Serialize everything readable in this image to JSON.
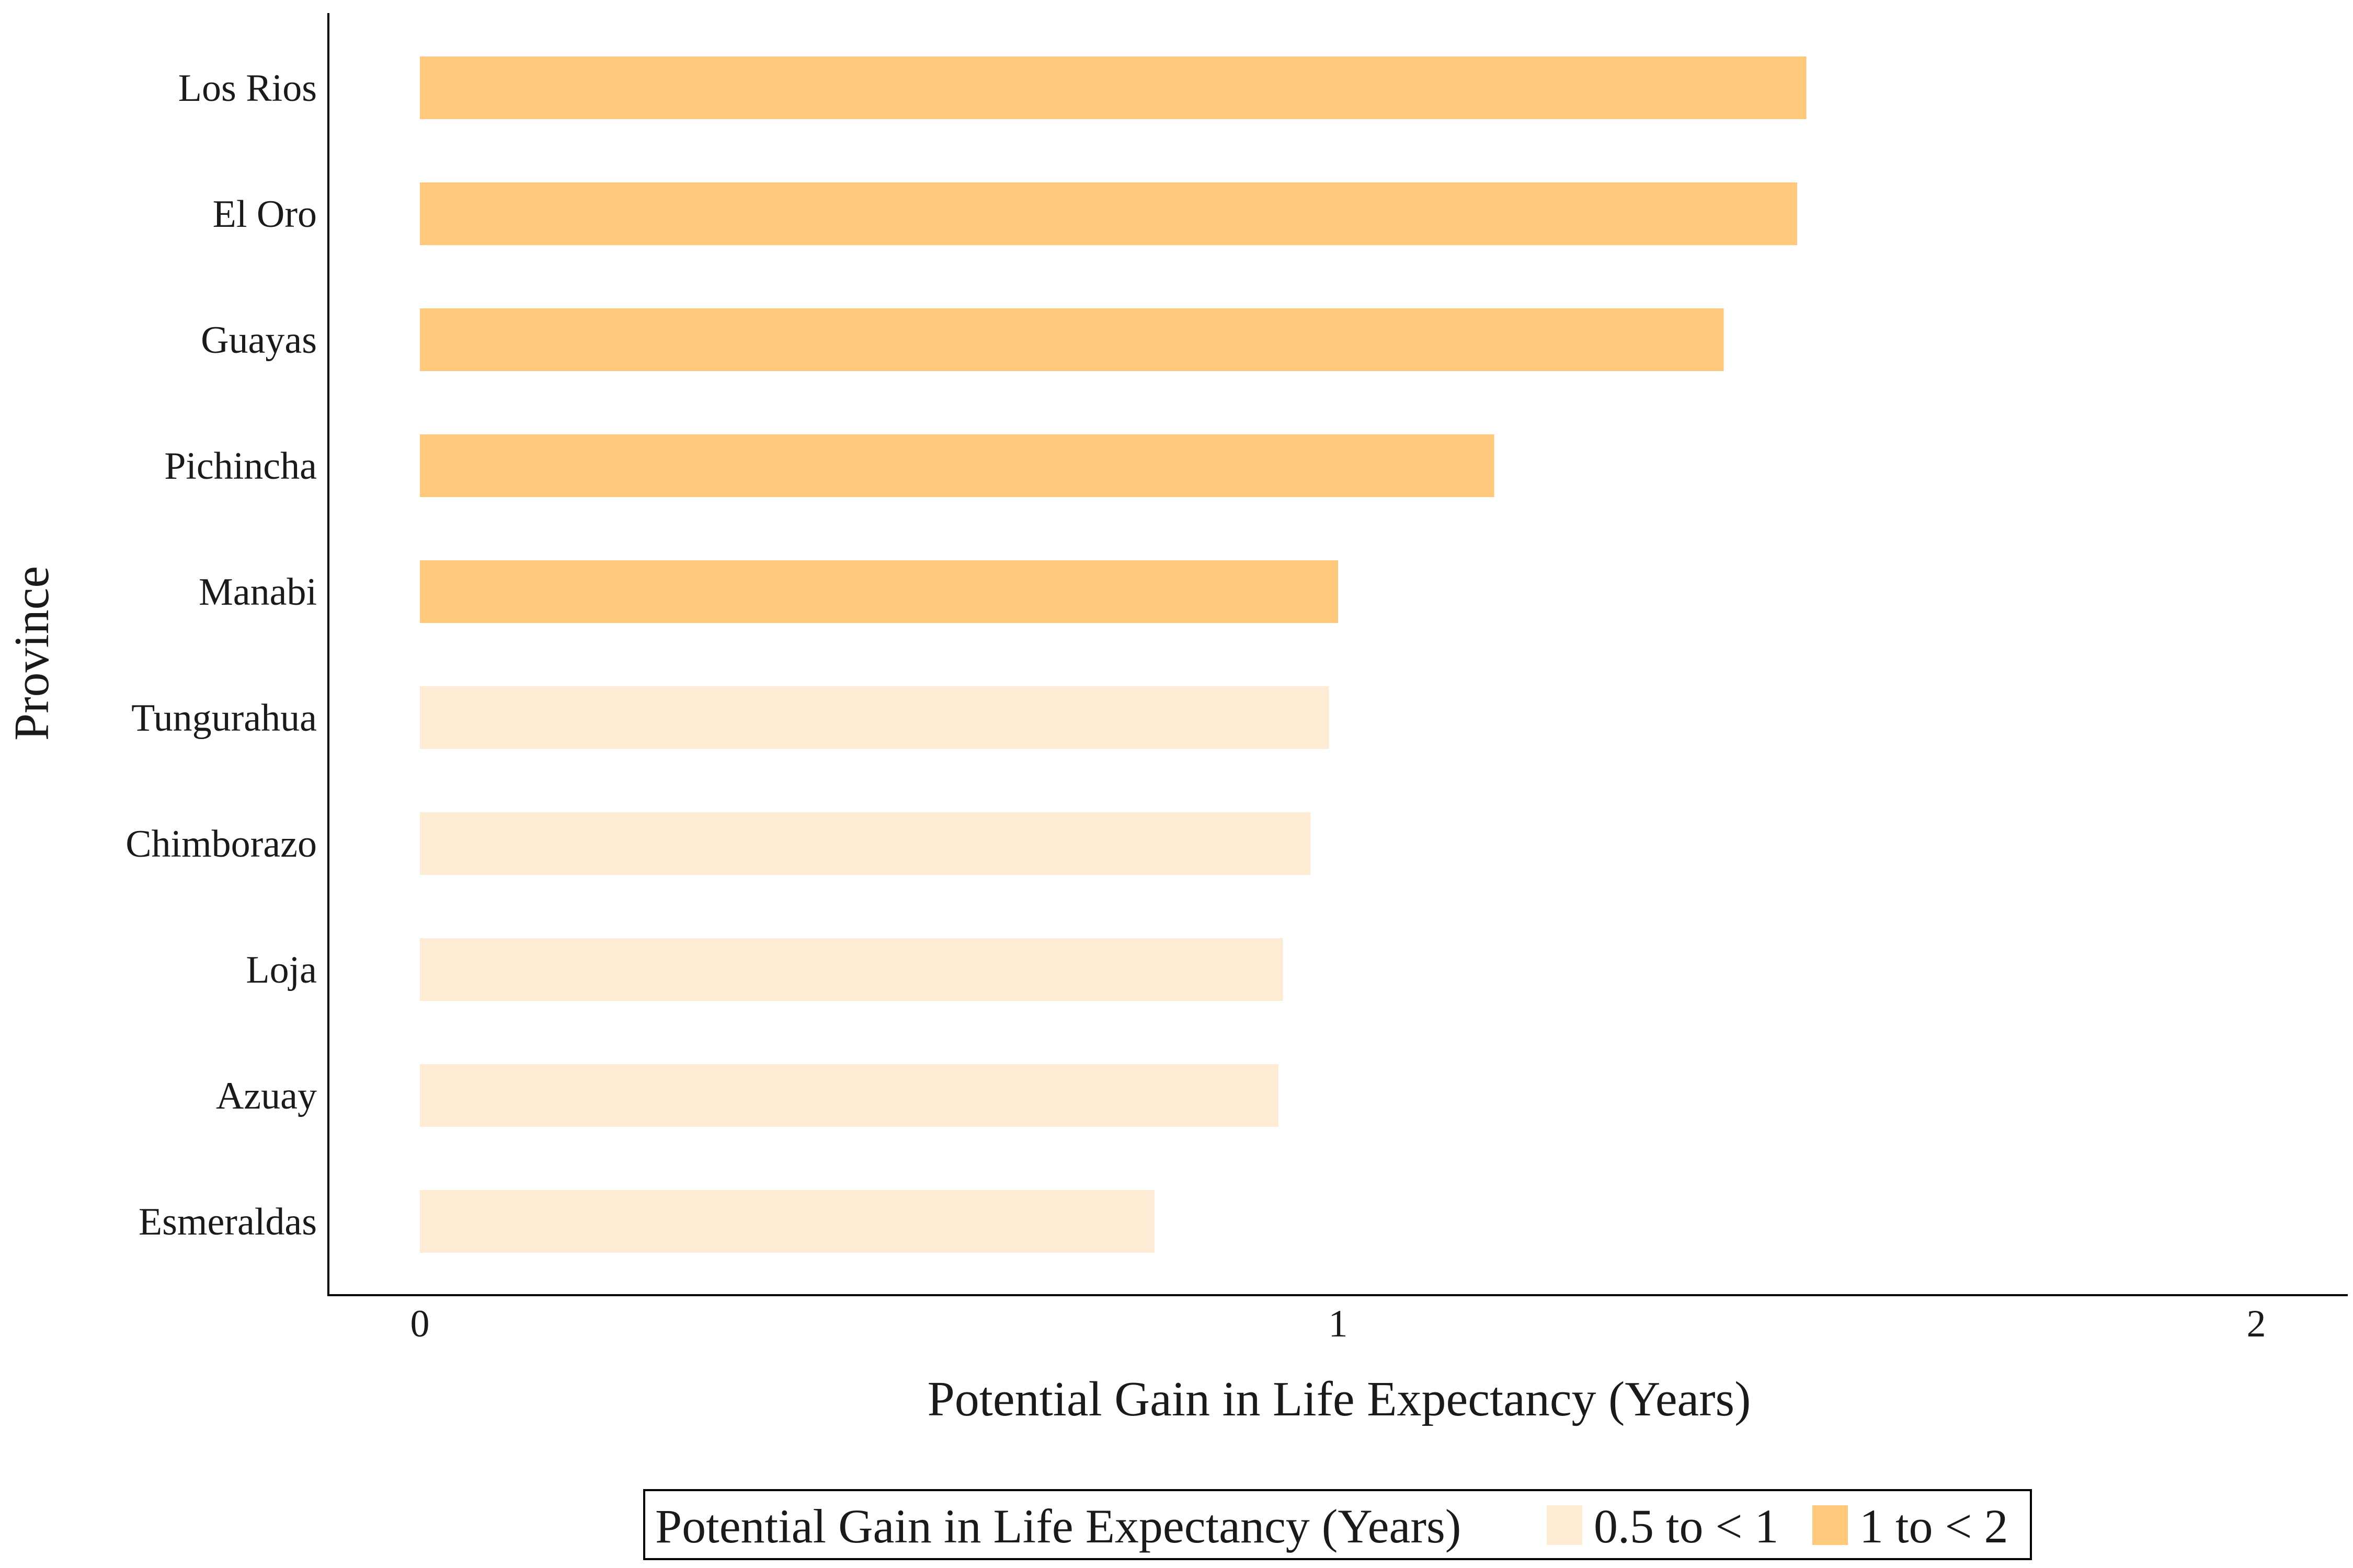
{
  "chart_data": {
    "type": "bar",
    "orientation": "horizontal",
    "categories": [
      "Los Rios",
      "El Oro",
      "Guayas",
      "Pichincha",
      "Manabi",
      "Tungurahua",
      "Chimborazo",
      "Loja",
      "Azuay",
      "Esmeraldas"
    ],
    "values": [
      1.51,
      1.5,
      1.42,
      1.17,
      1.0,
      0.99,
      0.97,
      0.94,
      0.935,
      0.8
    ],
    "groups": [
      "1 to < 2",
      "1 to < 2",
      "1 to < 2",
      "1 to < 2",
      "1 to < 2",
      "0.5 to < 1",
      "0.5 to < 1",
      "0.5 to < 1",
      "0.5 to < 1",
      "0.5 to < 1"
    ],
    "xlabel": "Potential Gain in Life Expectancy (Years)",
    "ylabel": "Province",
    "xlim": [
      -0.1,
      2.1
    ],
    "xticks": [
      "0",
      "1",
      "2"
    ],
    "grid": false,
    "legend": {
      "position": "bottom",
      "title": "Potential Gain in Life Expectancy (Years)",
      "entries": [
        {
          "label": "0.5 to < 1",
          "color": "#fdebd3"
        },
        {
          "label": "1 to < 2",
          "color": "#fec97b"
        }
      ]
    },
    "colors": {
      "0.5 to < 1": "#fdebd3",
      "1 to < 2": "#fec97b"
    }
  }
}
